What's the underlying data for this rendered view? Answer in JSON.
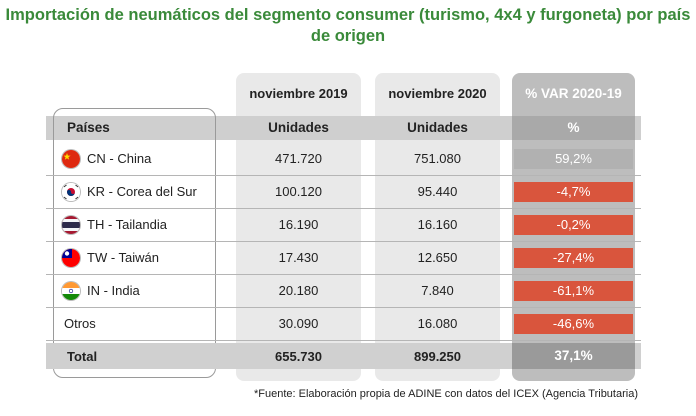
{
  "title": "Importación de neumáticos del segmento consumer (turismo, 4x4 y furgoneta) por país de origen",
  "header": {
    "period_2019": "noviembre 2019",
    "period_2020": "noviembre 2020",
    "period_var": "% VAR 2020-19",
    "countries_label": "Países",
    "units_2019": "Unidades",
    "units_2020": "Unidades",
    "units_var": "%"
  },
  "rows": [
    {
      "country": "CN - China",
      "flag": "china-flag-icon",
      "v2019": "471.720",
      "v2020": "751.080",
      "var": "59,2%",
      "sign": "pos"
    },
    {
      "country": "KR - Corea del Sur",
      "flag": "south-korea-flag-icon",
      "v2019": "100.120",
      "v2020": "95.440",
      "var": "-4,7%",
      "sign": "neg"
    },
    {
      "country": "TH - Tailandia",
      "flag": "thailand-flag-icon",
      "v2019": "16.190",
      "v2020": "16.160",
      "var": "-0,2%",
      "sign": "neg"
    },
    {
      "country": "TW - Taiwán",
      "flag": "taiwan-flag-icon",
      "v2019": "17.430",
      "v2020": "12.650",
      "var": "-27,4%",
      "sign": "neg"
    },
    {
      "country": "IN - India",
      "flag": "india-flag-icon",
      "v2019": "20.180",
      "v2020": "7.840",
      "var": "-61,1%",
      "sign": "neg"
    },
    {
      "country": "Otros",
      "flag": "",
      "v2019": "30.090",
      "v2020": "16.080",
      "var": "-46,6%",
      "sign": "neg"
    }
  ],
  "total": {
    "label": "Total",
    "v2019": "655.730",
    "v2020": "899.250",
    "var": "37,1%"
  },
  "footnote": "*Fuente: Elaboración propia de ADINE con datos del ICEX (Agencia Tributaria)",
  "colors": {
    "title": "#3a8a3a",
    "negative": "#d9553d",
    "positive": "#b1b1b1"
  },
  "chart_data": {
    "type": "table",
    "title": "Importación de neumáticos del segmento consumer (turismo, 4x4 y furgoneta) por país de origen",
    "columns": [
      "Países",
      "noviembre 2019 (Unidades)",
      "noviembre 2020 (Unidades)",
      "% VAR 2020-19"
    ],
    "categories": [
      "CN - China",
      "KR - Corea del Sur",
      "TH - Tailandia",
      "TW - Taiwán",
      "IN - India",
      "Otros",
      "Total"
    ],
    "series": [
      {
        "name": "noviembre 2019",
        "values": [
          471720,
          100120,
          16190,
          17430,
          20180,
          30090,
          655730
        ]
      },
      {
        "name": "noviembre 2020",
        "values": [
          751080,
          95440,
          16160,
          12650,
          7840,
          16080,
          899250
        ]
      },
      {
        "name": "% VAR 2020-19",
        "values": [
          59.2,
          -4.7,
          -0.2,
          -27.4,
          -61.1,
          -46.6,
          37.1
        ]
      }
    ]
  }
}
